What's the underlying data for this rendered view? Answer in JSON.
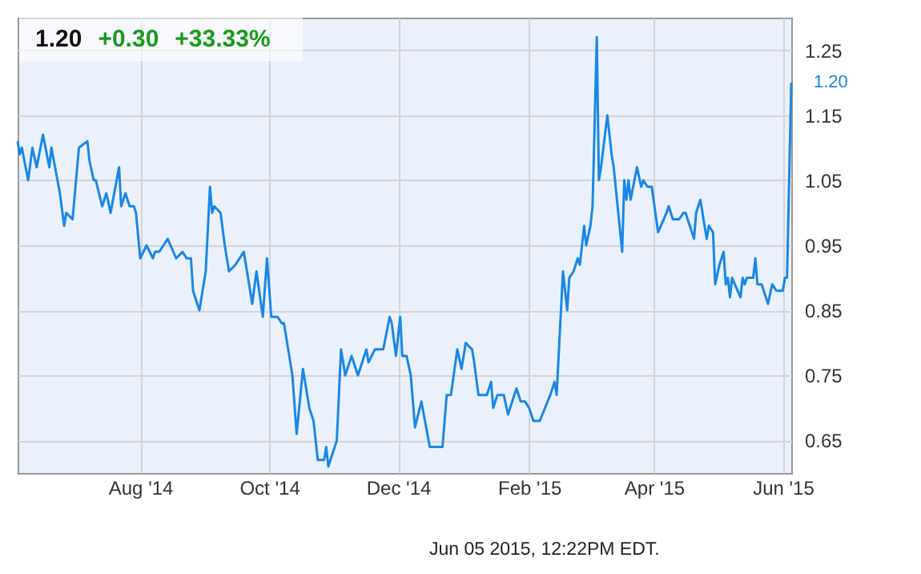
{
  "chart_data": {
    "type": "line",
    "annotations": [
      "1.20",
      "+0.30",
      "+33.33%",
      "Jun 05 2015, 12:22PM EDT."
    ],
    "x": [
      "2014-06-04",
      "2014-06-05",
      "2014-06-06",
      "2014-06-09",
      "2014-06-11",
      "2014-06-13",
      "2014-06-16",
      "2014-06-19",
      "2014-06-20",
      "2014-06-24",
      "2014-06-26",
      "2014-06-27",
      "2014-06-30",
      "2014-07-03",
      "2014-07-07",
      "2014-07-08",
      "2014-07-10",
      "2014-07-11",
      "2014-07-14",
      "2014-07-16",
      "2014-07-18",
      "2014-07-22",
      "2014-07-23",
      "2014-07-25",
      "2014-07-27",
      "2014-07-29",
      "2014-07-30",
      "2014-08-01",
      "2014-08-04",
      "2014-08-07",
      "2014-08-08",
      "2014-08-10",
      "2014-08-12",
      "2014-08-14",
      "2014-08-18",
      "2014-08-21",
      "2014-08-23",
      "2014-08-25",
      "2014-08-26",
      "2014-08-29",
      "2014-09-01",
      "2014-09-03",
      "2014-09-04",
      "2014-09-05",
      "2014-09-08",
      "2014-09-10",
      "2014-09-12",
      "2014-09-15",
      "2014-09-19",
      "2014-09-21",
      "2014-09-23",
      "2014-09-25",
      "2014-09-28",
      "2014-09-30",
      "2014-10-02",
      "2014-10-05",
      "2014-10-07",
      "2014-10-08",
      "2014-10-10",
      "2014-10-12",
      "2014-10-14",
      "2014-10-17",
      "2014-10-20",
      "2014-10-22",
      "2014-10-24",
      "2014-10-27",
      "2014-10-28",
      "2014-10-29",
      "2014-11-02",
      "2014-11-04",
      "2014-11-06",
      "2014-11-09",
      "2014-11-12",
      "2014-11-16",
      "2014-11-17",
      "2014-11-20",
      "2014-11-24",
      "2014-11-27",
      "2014-11-28",
      "2014-11-30",
      "2014-12-02",
      "2014-12-03",
      "2014-12-05",
      "2014-12-07",
      "2014-12-09",
      "2014-12-12",
      "2014-12-16",
      "2014-12-20",
      "2014-12-22",
      "2014-12-24",
      "2014-12-26",
      "2014-12-29",
      "2014-12-31",
      "2015-01-02",
      "2015-01-05",
      "2015-01-06",
      "2015-01-08",
      "2015-01-09",
      "2015-01-12",
      "2015-01-14",
      "2015-01-15",
      "2015-01-17",
      "2015-01-20",
      "2015-01-22",
      "2015-01-23",
      "2015-01-26",
      "2015-01-28",
      "2015-01-30",
      "2015-02-01",
      "2015-02-02",
      "2015-02-03",
      "2015-02-06",
      "2015-02-11",
      "2015-02-13",
      "2015-02-14",
      "2015-02-17",
      "2015-02-19",
      "2015-02-20",
      "2015-02-22",
      "2015-02-24",
      "2015-02-25",
      "2015-02-27",
      "2015-02-28",
      "2015-03-02",
      "2015-03-03",
      "2015-03-05",
      "2015-03-06",
      "2015-03-07",
      "2015-03-10",
      "2015-03-12",
      "2015-03-13",
      "2015-03-17",
      "2015-03-18",
      "2015-03-19",
      "2015-03-20",
      "2015-03-21",
      "2015-03-24",
      "2015-03-26",
      "2015-03-27",
      "2015-03-29",
      "2015-03-31",
      "2015-04-03",
      "2015-04-07",
      "2015-04-08",
      "2015-04-10",
      "2015-04-13",
      "2015-04-15",
      "2015-04-16",
      "2015-04-20",
      "2015-04-21",
      "2015-04-23",
      "2015-04-26",
      "2015-04-27",
      "2015-04-29",
      "2015-04-30",
      "2015-05-02",
      "2015-05-04",
      "2015-05-05",
      "2015-05-06",
      "2015-05-07",
      "2015-05-08",
      "2015-05-12",
      "2015-05-13",
      "2015-05-14",
      "2015-05-15",
      "2015-05-18",
      "2015-05-19",
      "2015-05-20",
      "2015-05-22",
      "2015-05-25",
      "2015-05-27",
      "2015-05-29",
      "2015-06-01",
      "2015-06-02",
      "2015-06-03",
      "2015-06-05"
    ],
    "series": [
      {
        "color": "#1a87e6",
        "values": [
          1.11,
          1.09,
          1.1,
          1.05,
          1.1,
          1.07,
          1.12,
          1.07,
          1.1,
          1.03,
          0.98,
          1.0,
          0.99,
          1.1,
          1.11,
          1.08,
          1.05,
          1.05,
          1.01,
          1.03,
          1.0,
          1.07,
          1.01,
          1.03,
          1.01,
          1.01,
          1.0,
          0.93,
          0.95,
          0.93,
          0.94,
          0.94,
          0.95,
          0.96,
          0.93,
          0.94,
          0.93,
          0.93,
          0.88,
          0.85,
          0.91,
          1.04,
          1.0,
          1.01,
          1.0,
          0.95,
          0.91,
          0.92,
          0.94,
          0.9,
          0.86,
          0.91,
          0.84,
          0.93,
          0.84,
          0.84,
          0.83,
          0.83,
          0.79,
          0.75,
          0.66,
          0.76,
          0.7,
          0.68,
          0.62,
          0.62,
          0.64,
          0.61,
          0.65,
          0.79,
          0.75,
          0.78,
          0.75,
          0.79,
          0.77,
          0.79,
          0.79,
          0.84,
          0.83,
          0.78,
          0.84,
          0.78,
          0.78,
          0.75,
          0.67,
          0.71,
          0.64,
          0.64,
          0.64,
          0.72,
          0.72,
          0.79,
          0.76,
          0.8,
          0.79,
          0.77,
          0.72,
          0.72,
          0.72,
          0.74,
          0.7,
          0.72,
          0.72,
          0.69,
          0.7,
          0.73,
          0.71,
          0.71,
          0.7,
          0.69,
          0.68,
          0.68,
          0.72,
          0.74,
          0.72,
          0.91,
          0.85,
          0.9,
          0.91,
          0.93,
          0.92,
          0.98,
          0.95,
          0.98,
          1.01,
          1.27,
          1.05,
          1.07,
          1.15,
          1.09,
          1.07,
          0.94,
          1.05,
          1.02,
          1.05,
          1.02,
          1.07,
          1.04,
          1.05,
          1.04,
          1.04,
          0.97,
          1.0,
          1.01,
          0.99,
          0.99,
          1.0,
          1.0,
          0.96,
          1.0,
          1.02,
          0.96,
          0.98,
          0.97,
          0.89,
          0.92,
          0.94,
          0.89,
          0.9,
          0.87,
          0.9,
          0.87,
          0.9,
          0.89,
          0.9,
          0.9,
          0.93,
          0.89,
          0.89,
          0.86,
          0.89,
          0.88,
          0.88,
          0.9,
          0.9,
          1.2
        ],
        "value_labels": [
          null,
          null,
          null,
          null,
          null,
          null,
          null,
          null,
          null,
          null,
          null,
          null,
          null,
          null,
          null,
          null,
          null,
          null,
          null,
          null,
          null,
          null,
          null,
          null,
          null,
          null,
          null,
          null,
          null,
          null,
          null,
          null,
          null,
          null,
          null,
          null,
          null,
          null,
          null,
          null,
          null,
          null,
          null,
          null,
          null,
          null,
          null,
          null,
          null,
          null,
          null,
          null,
          null,
          null,
          null,
          null,
          null,
          null,
          null,
          null,
          null,
          null,
          null,
          null,
          null,
          null,
          null,
          null,
          null,
          null,
          null,
          null,
          null,
          null,
          null,
          null,
          null,
          null,
          null,
          null,
          null,
          null,
          null,
          null,
          null,
          null,
          null,
          null,
          null,
          null,
          null,
          null,
          null,
          null,
          null,
          null,
          null,
          null,
          null,
          null,
          null,
          null,
          null,
          null,
          null,
          null,
          null,
          null,
          null,
          null,
          null,
          null,
          null,
          null,
          null,
          null,
          null,
          null,
          null,
          null,
          null,
          null,
          null,
          null,
          null,
          null,
          null,
          null,
          null,
          null,
          null,
          null,
          null,
          null,
          null,
          null,
          null,
          null,
          null,
          null,
          null,
          null,
          null,
          null,
          null,
          null,
          null,
          null,
          null,
          null,
          null,
          null,
          null,
          null,
          null,
          null,
          null,
          null,
          null,
          null,
          null,
          null,
          null,
          null,
          null,
          null,
          null,
          null,
          null,
          null,
          null,
          null,
          null,
          null,
          null,
          "1.20"
        ]
      }
    ],
    "xlim": [
      "2014-06-04",
      "2015-06-05"
    ],
    "xticks": [
      {
        "value": "2014-08",
        "label": "Aug '14"
      },
      {
        "value": "2014-10",
        "label": "Oct '14"
      },
      {
        "value": "2014-12",
        "label": "Dec '14"
      },
      {
        "value": "2015-02",
        "label": "Feb '15"
      },
      {
        "value": "2015-04",
        "label": "Apr '15"
      },
      {
        "value": "2015-06",
        "label": "Jun '15"
      }
    ],
    "ylim": [
      0.6,
      1.3
    ],
    "yticks": [
      0.65,
      0.75,
      0.85,
      0.95,
      1.05,
      1.15,
      1.25
    ],
    "grid": true
  }
}
